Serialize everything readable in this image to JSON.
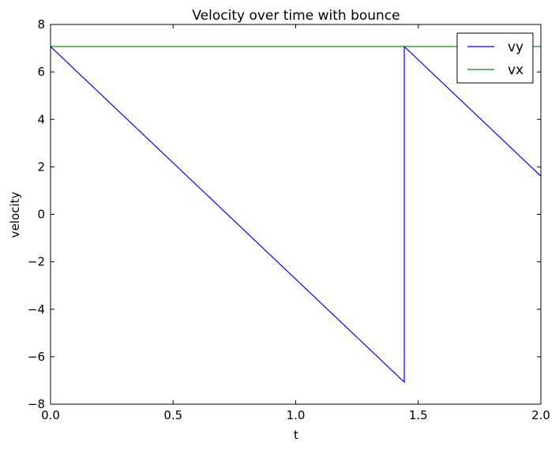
{
  "chart_data": {
    "type": "line",
    "title": "Velocity over time with bounce",
    "xlabel": "t",
    "ylabel": "velocity",
    "xlim": [
      0,
      2
    ],
    "ylim": [
      -8,
      8
    ],
    "xticks": [
      0,
      0.5,
      1,
      1.5,
      2
    ],
    "xtick_labels": [
      "0.0",
      "0.5",
      "1.0",
      "1.5",
      "2.0"
    ],
    "yticks": [
      -8,
      -6,
      -4,
      -2,
      0,
      2,
      4,
      6,
      8
    ],
    "ytick_labels": [
      "−8",
      "−6",
      "−4",
      "−2",
      "0",
      "2",
      "4",
      "6",
      "8"
    ],
    "grid": false,
    "legend_position": "top-right",
    "series": [
      {
        "name": "vy",
        "color": "#0000ff",
        "x": [
          0,
          1.443,
          1.443,
          2.0
        ],
        "y": [
          7.07,
          -7.07,
          7.07,
          1.61
        ]
      },
      {
        "name": "vx",
        "color": "#008000",
        "x": [
          0,
          2.0
        ],
        "y": [
          7.07,
          7.07
        ]
      }
    ]
  }
}
